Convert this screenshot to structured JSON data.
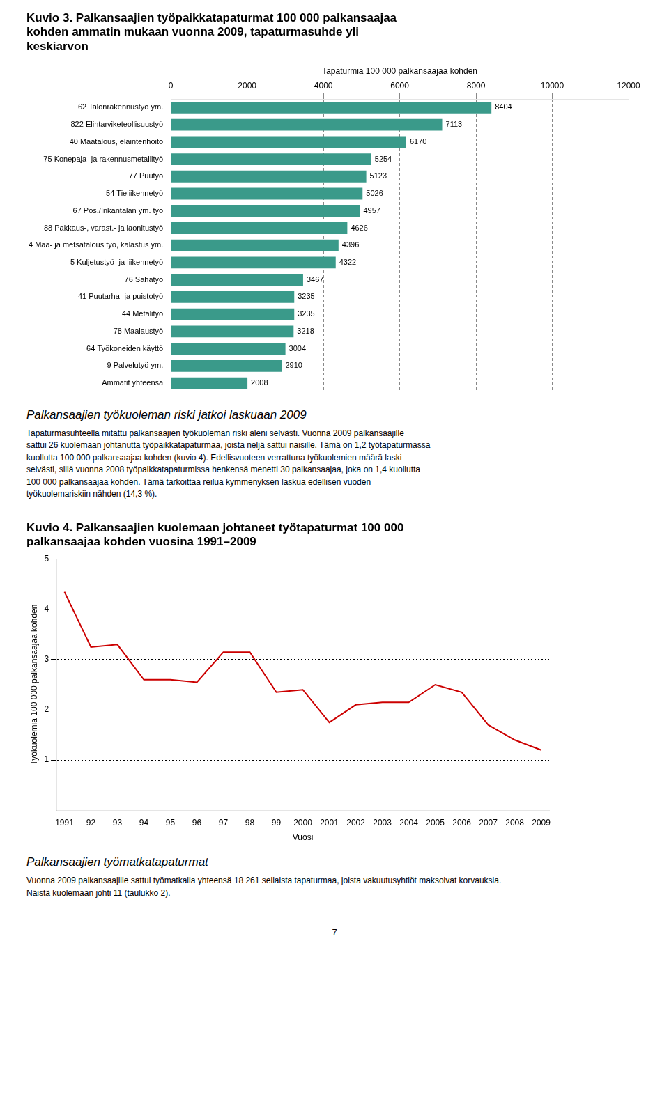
{
  "chart_data": [
    {
      "type": "bar",
      "orientation": "horizontal",
      "title": [
        "Kuvio 3. Palkansaajien työpaikkatapaturmat 100 000 palkansaajaa",
        "kohden ammatin mukaan vuonna 2009, tapaturmasuhde yli",
        "keskiarvon"
      ],
      "x_label": "Tapaturmia 100 000 palkansaajaa kohden",
      "categories": [
        "62 Talonrakennustyö ym.",
        "822 Elintarviketeollisuustyö",
        "40 Maatalous, eläintenhoito",
        "75 Konepaja- ja rakennusmetallityö",
        "77 Puutyö",
        "54 Tieliikennetyö",
        "67 Pos./Inkantalan ym. työ",
        "88 Pakkaus-, varast.- ja laonitustyö",
        "4 Maa- ja metsätalous työ, kalastus ym.",
        "5 Kuljetustyö- ja liikennetyö",
        "76 Sahatyö",
        "41 Puutarha- ja puistotyö",
        "44 Metalityö",
        "78 Maalaustyö",
        "64 Työkoneiden käyttö",
        "9 Palvelutyö ym.",
        "Ammatit yhteensä"
      ],
      "values": [
        8404,
        7113,
        6170,
        5254,
        5123,
        5026,
        4957,
        4626,
        4396,
        4322,
        3467,
        3235,
        3235,
        3218,
        3004,
        2910,
        2008
      ],
      "color": "#3a9a8a",
      "xlim": [
        0,
        12000
      ],
      "xticks": [
        0,
        2000,
        4000,
        6000,
        8000,
        10000,
        12000
      ],
      "grid": true,
      "data_labels": true,
      "annotations": [
        "Palkansaajien työkuoleman riski jatkoi laskuaan 2009",
        "Tapaturmasuhteella mitattu palkansaajien työkuoleman riski aleni selvästi. Vuonna 2009 palkansaajille",
        "sattui 26 kuolemaan johtanutta työpaikkatapaturmaa, joista neljä sattui naisille. Tämä on 1,2 työtapaturmassa",
        "kuollutta 100 000 palkansaajaa kohden (kuvio 4). Edellisvuoteen verrattuna työkuolemien määrä laski",
        "selvästi, sillä vuonna 2008 työpaikkatapaturmissa henkensä menetti 30 palkansaajaa, joka on 1,4 kuollutta",
        "100 000 palkansaajaa kohden. Tämä tarkoittaa reilua kymmenyksen laskua edellisen vuoden",
        "työkuolemariskiin nähden (14,3 %)."
      ]
    },
    {
      "type": "line",
      "title": [
        "Kuvio 4. Palkansaajien kuolemaan johtaneet työtapaturmat 100 000",
        "palkansaajaa kohden vuosina 1991–2009"
      ],
      "x_label": "Vuosi",
      "y_label": "Työkuolemia 100 000 palkansaajaa kohden",
      "x": [
        1991,
        1992,
        1993,
        1994,
        1995,
        1996,
        1997,
        1998,
        1999,
        2000,
        2001,
        2002,
        2003,
        2004,
        2005,
        2006,
        2007,
        2008,
        2009
      ],
      "values": [
        4.35,
        3.25,
        3.3,
        2.6,
        2.6,
        2.55,
        3.15,
        3.15,
        2.35,
        2.4,
        1.75,
        2.1,
        2.15,
        2.15,
        2.5,
        2.35,
        1.7,
        1.4,
        1.2
      ],
      "color": "#cc0000",
      "xlim": [
        1990.7,
        2009.3
      ],
      "xticks": [
        1991,
        {
          "value": 1992,
          "label": "92"
        },
        {
          "value": 1993,
          "label": "93"
        },
        {
          "value": 1994,
          "label": "94"
        },
        {
          "value": 1995,
          "label": "95"
        },
        {
          "value": 1996,
          "label": "96"
        },
        {
          "value": 1997,
          "label": "97"
        },
        {
          "value": 1998,
          "label": "98"
        },
        {
          "value": 1999,
          "label": "99"
        },
        2000,
        2001,
        2002,
        2003,
        2004,
        2005,
        2006,
        2007,
        2008,
        2009
      ],
      "ylim": [
        0,
        5
      ],
      "yticks": [
        1,
        2,
        3,
        4,
        5
      ],
      "grid": true,
      "annotations": [
        "Palkansaajien työmatkatapaturmat",
        "Vuonna 2009 palkansaajille sattui työmatkalla yhteensä 18 261 sellaista tapaturmaa, joista vakuutusyhtiöt maksoivat korvauksia.",
        "Näistä kuolemaan johti 11 (taulukko 2).",
        "7"
      ]
    }
  ]
}
